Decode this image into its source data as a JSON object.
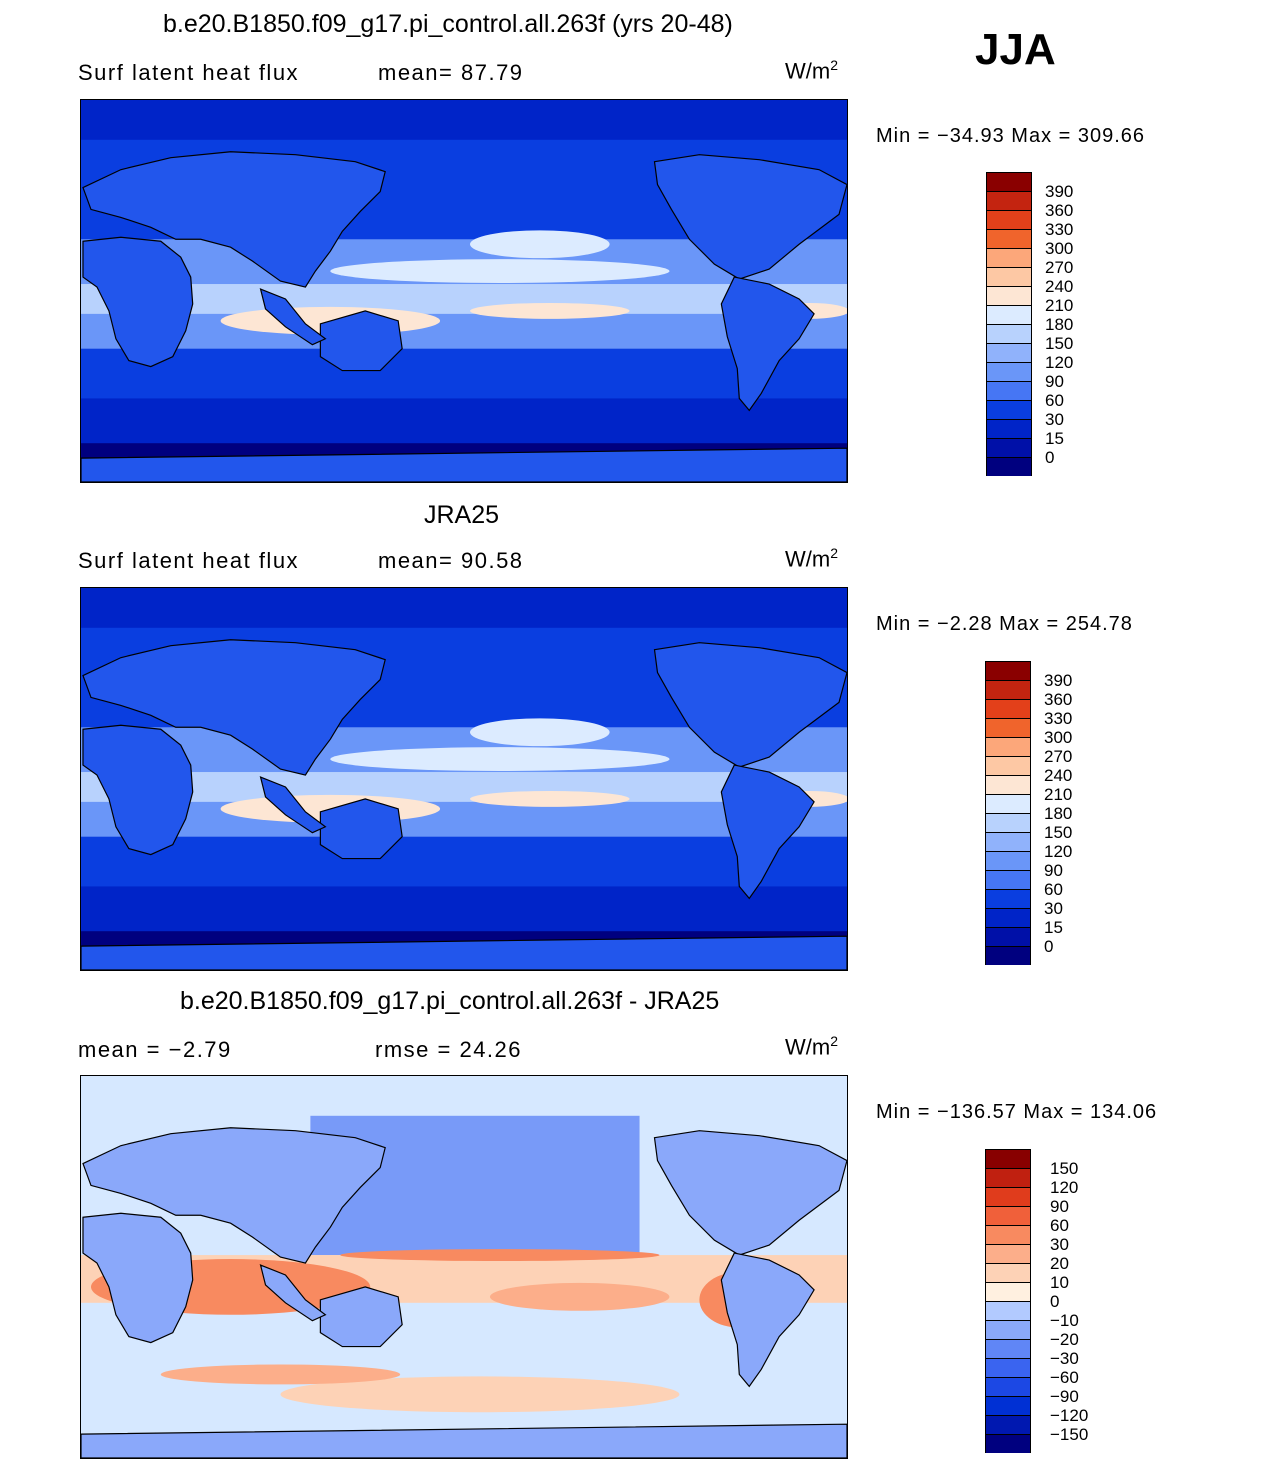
{
  "season": "JJA",
  "colors": {
    "land_seq": [
      "#00007f",
      "#0010a8",
      "#0024c8",
      "#0a3ee0",
      "#2256ec",
      "#4676f4",
      "#6a96f8",
      "#90b2fb",
      "#b8d2fd",
      "#dcebff",
      "#fde6d4",
      "#fdc8a4",
      "#fca77a",
      "#f88752",
      "#f0642c",
      "#e3401a",
      "#c42410",
      "#8a0000"
    ],
    "diff_seq": [
      "#00007f",
      "#0018b0",
      "#0030d4",
      "#1c48e4",
      "#3a64f0",
      "#6086f6",
      "#8aa8fa",
      "#b2caff",
      "#d6e8ff",
      "#fff0e0",
      "#fdd2b6",
      "#fcae8a",
      "#f88a60",
      "#f0603a",
      "#e03c1c",
      "#c02010",
      "#880000"
    ]
  },
  "panels": [
    {
      "title": "b.e20.B1850.f09_g17.pi_control.all.263f (yrs 20-48)",
      "left_text": "Surf  latent  heat  flux",
      "mid_text": "mean=   87.79",
      "units_text": "W/m",
      "units_sup": "2",
      "minmax": "Min  =  −34.93  Max  =  309.66",
      "colorbar_labels": [
        "390",
        "360",
        "330",
        "300",
        "270",
        "240",
        "210",
        "180",
        "150",
        "120",
        "90",
        "60",
        "30",
        "15",
        "0"
      ]
    },
    {
      "title": "JRA25",
      "left_text": "Surf  latent  heat  flux",
      "mid_text": "mean=   90.58",
      "units_text": "W/m",
      "units_sup": "2",
      "minmax": "Min  =    −2.28  Max  =  254.78",
      "colorbar_labels": [
        "390",
        "360",
        "330",
        "300",
        "270",
        "240",
        "210",
        "180",
        "150",
        "120",
        "90",
        "60",
        "30",
        "15",
        "0"
      ]
    },
    {
      "title": "b.e20.B1850.f09_g17.pi_control.all.263f - JRA25",
      "left_text": "mean  =    −2.79",
      "mid_text": "rmse  =    24.26",
      "units_text": "W/m",
      "units_sup": "2",
      "minmax": "Min  =  −136.57  Max  =  134.06",
      "colorbar_labels": [
        "150",
        "120",
        "90",
        "60",
        "30",
        "20",
        "10",
        "0",
        "−10",
        "−20",
        "−30",
        "−60",
        "−90",
        "−120",
        "−150"
      ]
    }
  ]
}
